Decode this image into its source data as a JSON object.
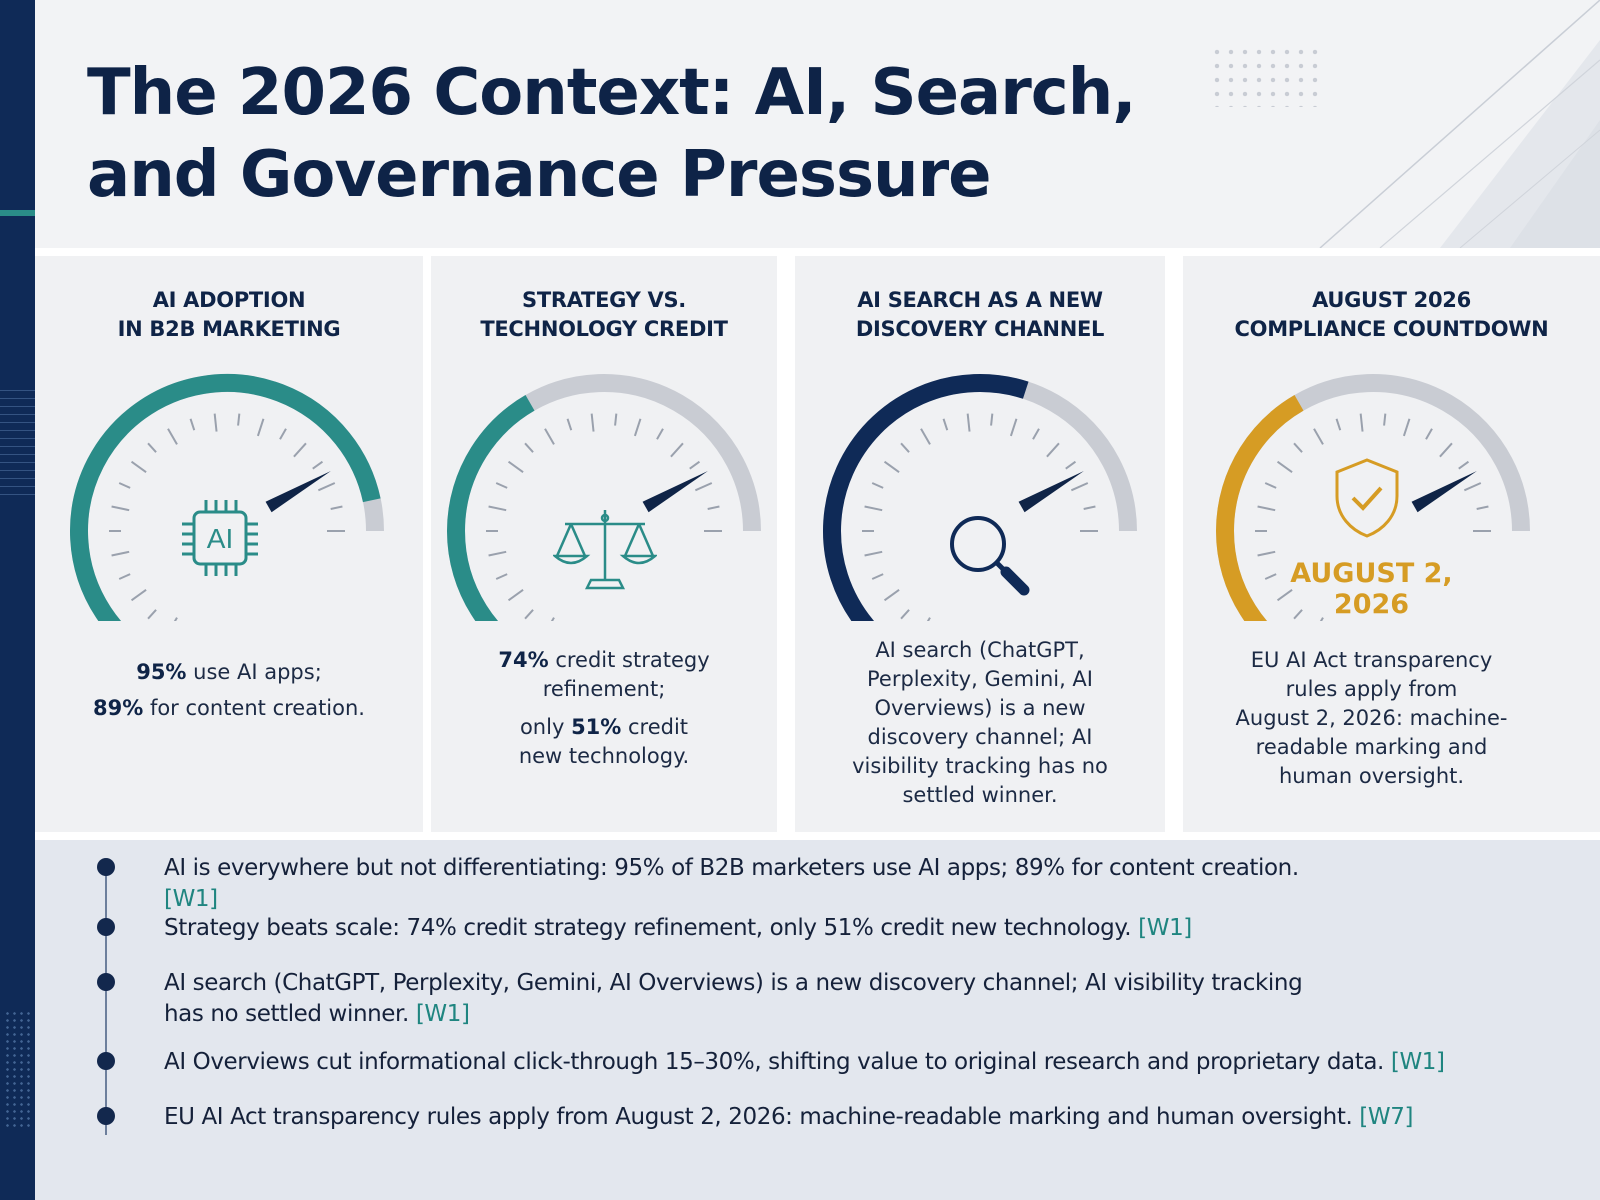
{
  "title": "The 2026 Context: AI, Search, and Governance Pressure",
  "colors": {
    "navy": "#0f2447",
    "teal": "#2a8c88",
    "gold": "#d69c24",
    "gray": "#c9ccd3"
  },
  "cards": [
    {
      "title": "AI ADOPTION\nIN B2B MARKETING",
      "icon": "ai-chip-icon",
      "icon_text": "AI",
      "gauge_level": 0.95,
      "stat1_value": "95%",
      "stat1_text": " use AI apps;",
      "stat2_value": "89%",
      "stat2_text": " for content creation."
    },
    {
      "title": "STRATEGY VS.\nTECHNOLOGY CREDIT",
      "icon": "balance-scale-icon",
      "gauge_level": 0.5,
      "stat1_value": "74%",
      "stat1_text": " credit strategy",
      "stat1_cont": "refinement;",
      "stat2_prefix": "only ",
      "stat2_value": "51%",
      "stat2_text": " credit",
      "stat2_cont": "new technology."
    },
    {
      "title": "AI SEARCH AS A NEW\nDISCOVERY CHANNEL",
      "icon": "magnifier-icon",
      "gauge_level": 0.7,
      "lines": [
        "AI search (ChatGPT,",
        "Perplexity, Gemini, AI",
        "Overviews) is a new",
        "discovery channel; AI",
        "visibility tracking has no",
        "settled winner."
      ]
    },
    {
      "title": "AUGUST 2026\nCOMPLIANCE COUNTDOWN",
      "icon": "shield-check-icon",
      "gauge_level": 0.5,
      "date": "AUGUST 2,\n2026",
      "lines": [
        "EU AI Act transparency",
        "rules apply from",
        "August 2, 2026: machine-",
        "readable marking and",
        "human oversight."
      ]
    }
  ],
  "bullets": [
    {
      "text": "AI is everywhere but not differentiating: 95% of B2B marketers use AI apps; 89% for content creation.",
      "ref": "[W1]"
    },
    {
      "text": "Strategy beats scale: 74% credit strategy refinement, only 51% credit new technology.",
      "ref": "[W1]"
    },
    {
      "text": "AI search (ChatGPT, Perplexity, Gemini, AI Overviews) is a new discovery channel; AI visibility tracking has no settled winner.",
      "ref": "[W1]"
    },
    {
      "text": "AI Overviews cut informational click-through 15–30%, shifting value to original research and proprietary data.",
      "ref": "[W1]"
    },
    {
      "text": "EU AI Act transparency rules apply from August 2, 2026: machine-readable marking and human oversight.",
      "ref": "[W7]"
    }
  ]
}
